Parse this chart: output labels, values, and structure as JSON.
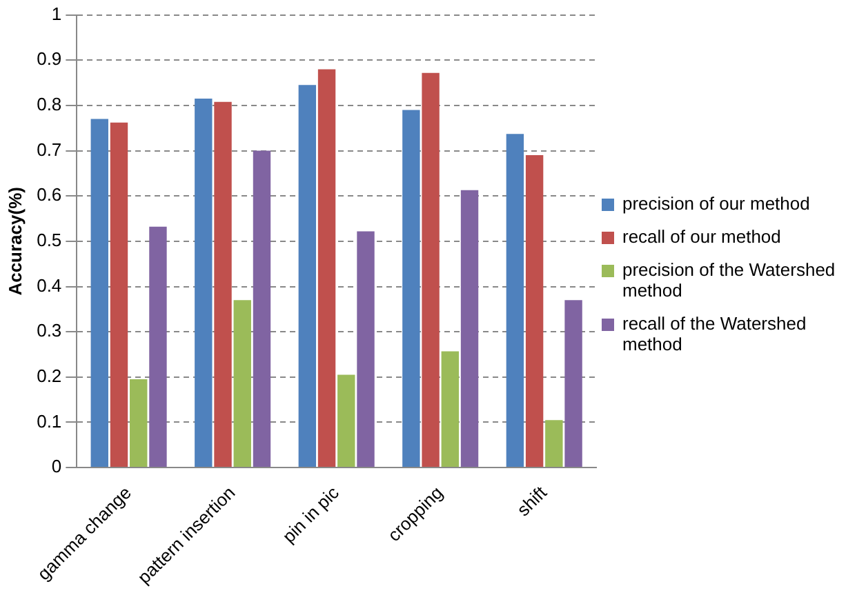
{
  "chart_data": {
    "type": "bar",
    "ylabel": "Accuracy(%)",
    "categories": [
      "gamma change",
      "pattern insertion",
      "pin in pic",
      "cropping",
      "shift"
    ],
    "series": [
      {
        "name": "precision of our method",
        "color": "#4f81bd",
        "values": [
          0.77,
          0.815,
          0.845,
          0.79,
          0.737
        ]
      },
      {
        "name": "recall of our method",
        "color": "#c0504d",
        "values": [
          0.762,
          0.808,
          0.88,
          0.872,
          0.69
        ]
      },
      {
        "name": "precision of the Watershed method",
        "color": "#9bbb59",
        "values": [
          0.195,
          0.37,
          0.205,
          0.257,
          0.105
        ]
      },
      {
        "name": "recall of the Watershed method",
        "color": "#8064a2",
        "values": [
          0.532,
          0.7,
          0.522,
          0.613,
          0.37
        ]
      }
    ],
    "ylim": [
      0,
      1
    ],
    "yticks": [
      0,
      0.1,
      0.2,
      0.3,
      0.4,
      0.5,
      0.6,
      0.7,
      0.8,
      0.9,
      1
    ],
    "grid": "y",
    "legend": "right"
  }
}
